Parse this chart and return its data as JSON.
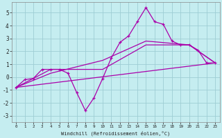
{
  "xlabel": "Windchill (Refroidissement éolien,°C)",
  "xlim": [
    -0.5,
    23.5
  ],
  "ylim": [
    -3.5,
    5.8
  ],
  "yticks": [
    -3,
    -2,
    -1,
    0,
    1,
    2,
    3,
    4,
    5
  ],
  "xticks": [
    0,
    1,
    2,
    3,
    4,
    5,
    6,
    7,
    8,
    9,
    10,
    11,
    12,
    13,
    14,
    15,
    16,
    17,
    18,
    19,
    20,
    21,
    22,
    23
  ],
  "background_color": "#c5edf0",
  "grid_color": "#9ecdd4",
  "line_color": "#aa00aa",
  "line1_x": [
    0,
    1,
    2,
    3,
    4,
    5,
    6,
    7,
    8,
    9,
    10,
    11,
    12,
    13,
    14,
    15,
    16,
    17,
    18,
    19,
    20,
    21,
    22,
    23
  ],
  "line1_y": [
    -0.8,
    -0.2,
    -0.1,
    0.6,
    0.6,
    0.6,
    0.3,
    -1.2,
    -2.6,
    -1.6,
    -0.1,
    1.5,
    2.7,
    3.2,
    4.3,
    5.4,
    4.3,
    4.1,
    2.8,
    2.5,
    2.5,
    2.1,
    1.1,
    1.1
  ],
  "line2_x": [
    0,
    4,
    10,
    15,
    20,
    23
  ],
  "line2_y": [
    -0.8,
    0.6,
    0.6,
    2.5,
    2.5,
    1.1
  ],
  "line3_x": [
    0,
    4,
    10,
    15,
    20,
    23
  ],
  "line3_y": [
    -0.8,
    0.3,
    1.3,
    2.8,
    2.5,
    1.1
  ],
  "line4_x": [
    0,
    23
  ],
  "line4_y": [
    -0.8,
    1.1
  ],
  "xlabel_fontsize": 5.0,
  "tick_fontsize_x": 4.2,
  "tick_fontsize_y": 5.5
}
